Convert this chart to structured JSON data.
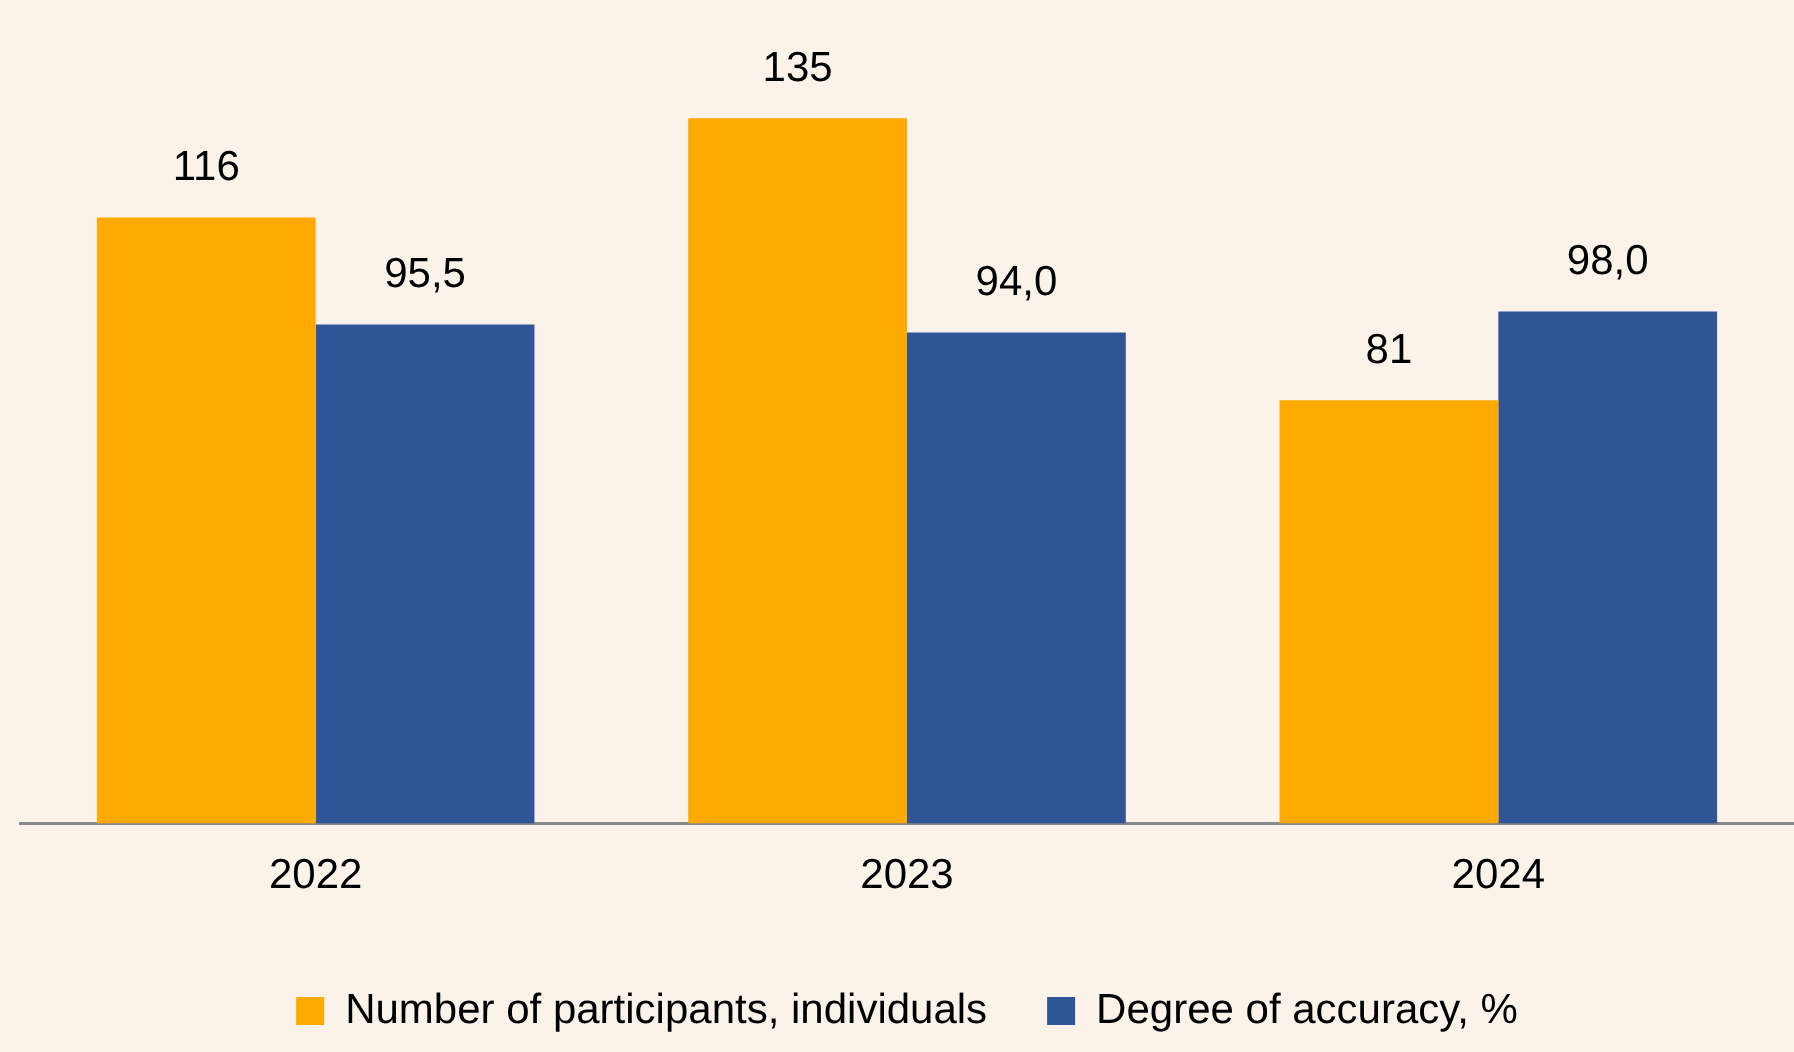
{
  "chart_data": {
    "type": "bar",
    "categories": [
      "2022",
      "2023",
      "2024"
    ],
    "series": [
      {
        "name": "Number of participants, individuals",
        "color": "#ffaa00",
        "values": [
          116,
          135,
          81
        ],
        "value_labels": [
          "116",
          "135",
          "81"
        ]
      },
      {
        "name": "Degree of accuracy, %",
        "color": "#2f5597",
        "values": [
          95.5,
          94.0,
          98.0
        ],
        "value_labels": [
          "95,5",
          "94,0",
          "98,0"
        ]
      }
    ],
    "tick_labels": "x",
    "grid": false,
    "legend": "bottom"
  }
}
